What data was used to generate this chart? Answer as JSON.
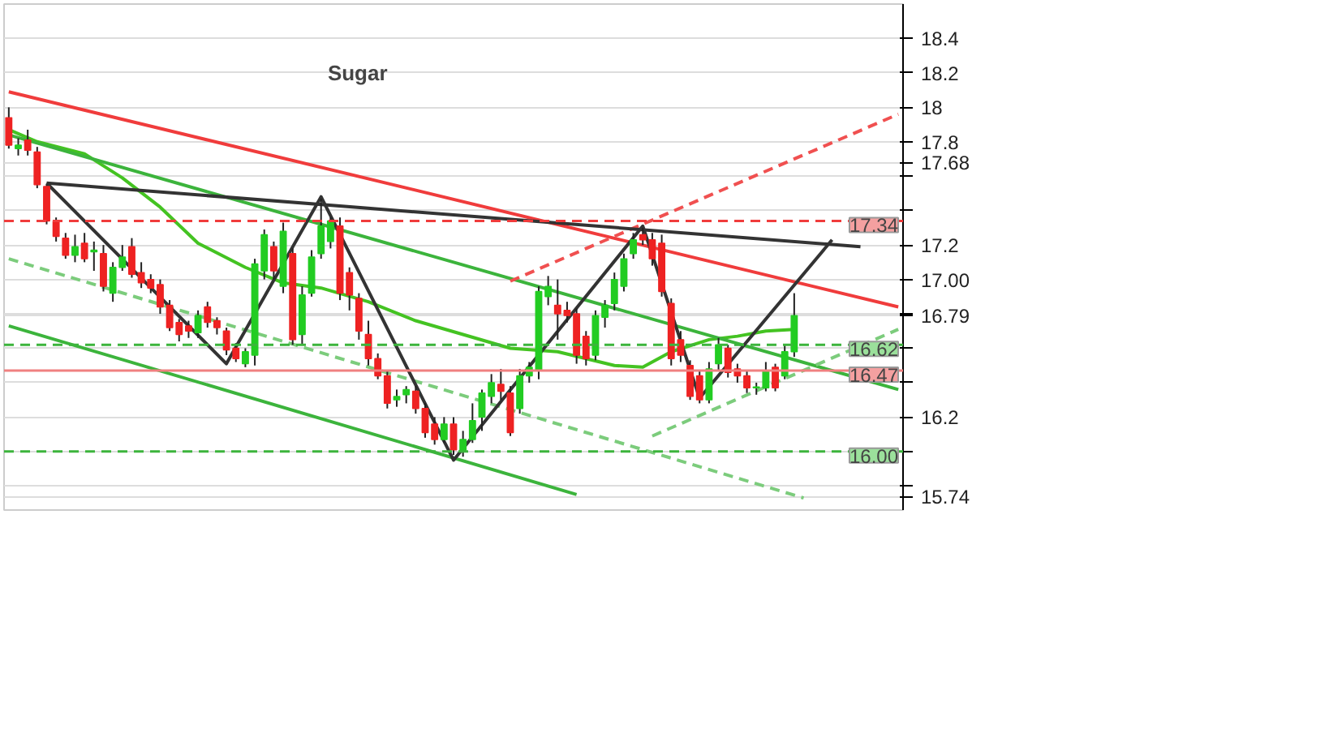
{
  "chart_data": {
    "type": "candlestick",
    "title": "Sugar",
    "categories": [
      null,
      null,
      null,
      null,
      null,
      null,
      null,
      null,
      null,
      null,
      null,
      null,
      null,
      null,
      null,
      null,
      null,
      null,
      null,
      null,
      null,
      null,
      null,
      null,
      null,
      null,
      null,
      null,
      null,
      null,
      null,
      null,
      null,
      null,
      null,
      null,
      null,
      null,
      null,
      null,
      null,
      null,
      null,
      null,
      null,
      null,
      null,
      null,
      null,
      null,
      null,
      null,
      null,
      null,
      null,
      null,
      null,
      null,
      null,
      null,
      null,
      null,
      null,
      null,
      null,
      null,
      null,
      null,
      null,
      null,
      null,
      null,
      null,
      null,
      null,
      null,
      null,
      null,
      null,
      null,
      null,
      null,
      null,
      null,
      null,
      null,
      null,
      null,
      null,
      null,
      null,
      null,
      null,
      null,
      null
    ],
    "ohlc": [
      [
        17.94,
        18.0,
        17.76,
        17.78
      ],
      [
        17.76,
        17.82,
        17.72,
        17.78
      ],
      [
        17.81,
        17.87,
        17.72,
        17.75
      ],
      [
        17.74,
        17.77,
        17.53,
        17.55
      ],
      [
        17.54,
        17.55,
        17.32,
        17.34
      ],
      [
        17.34,
        17.36,
        17.22,
        17.25
      ],
      [
        17.24,
        17.27,
        17.12,
        17.14
      ],
      [
        17.14,
        17.26,
        17.1,
        17.19
      ],
      [
        17.21,
        17.27,
        17.1,
        17.12
      ],
      [
        17.16,
        17.22,
        17.05,
        17.17
      ],
      [
        17.15,
        17.2,
        16.93,
        16.96
      ],
      [
        16.92,
        17.1,
        16.87,
        17.07
      ],
      [
        17.07,
        17.2,
        17.05,
        17.13
      ],
      [
        17.19,
        17.24,
        17.01,
        17.03
      ],
      [
        17.04,
        17.1,
        16.95,
        16.98
      ],
      [
        17.0,
        17.03,
        16.92,
        16.95
      ],
      [
        16.97,
        17.0,
        16.8,
        16.84
      ],
      [
        16.85,
        16.88,
        16.7,
        16.72
      ],
      [
        16.75,
        16.77,
        16.64,
        16.68
      ],
      [
        16.73,
        16.76,
        16.66,
        16.7
      ],
      [
        16.69,
        16.82,
        16.66,
        16.79
      ],
      [
        16.84,
        16.87,
        16.72,
        16.75
      ],
      [
        16.76,
        16.78,
        16.68,
        16.72
      ],
      [
        16.7,
        16.72,
        16.56,
        16.59
      ],
      [
        16.6,
        16.63,
        16.52,
        16.54
      ],
      [
        16.51,
        16.6,
        16.49,
        16.58
      ],
      [
        16.56,
        17.12,
        16.5,
        17.09
      ],
      [
        17.05,
        17.29,
        17.0,
        17.26
      ],
      [
        17.19,
        17.22,
        17.0,
        17.05
      ],
      [
        16.96,
        17.33,
        16.92,
        17.28
      ],
      [
        17.15,
        17.18,
        16.62,
        16.65
      ],
      [
        16.68,
        16.96,
        16.62,
        16.91
      ],
      [
        16.92,
        17.17,
        16.9,
        17.13
      ],
      [
        17.15,
        17.47,
        17.12,
        17.31
      ],
      [
        17.22,
        17.36,
        17.18,
        17.34
      ],
      [
        17.31,
        17.36,
        16.88,
        16.92
      ],
      [
        17.04,
        17.07,
        16.82,
        16.91
      ],
      [
        16.89,
        16.92,
        16.65,
        16.7
      ],
      [
        16.68,
        16.76,
        16.5,
        16.54
      ],
      [
        16.54,
        16.57,
        16.42,
        16.44
      ],
      [
        16.44,
        16.47,
        16.25,
        16.28
      ],
      [
        16.3,
        16.36,
        16.26,
        16.32
      ],
      [
        16.33,
        16.38,
        16.28,
        16.36
      ],
      [
        16.35,
        16.38,
        16.22,
        16.25
      ],
      [
        16.25,
        16.28,
        16.08,
        16.11
      ],
      [
        16.16,
        16.2,
        16.04,
        16.07
      ],
      [
        16.07,
        16.2,
        16.05,
        16.16
      ],
      [
        16.16,
        16.2,
        15.98,
        16.01
      ],
      [
        16.0,
        16.12,
        15.97,
        16.07
      ],
      [
        16.07,
        16.28,
        16.05,
        16.18
      ],
      [
        16.2,
        16.36,
        16.12,
        16.34
      ],
      [
        16.32,
        16.45,
        16.28,
        16.4
      ],
      [
        16.39,
        16.48,
        16.3,
        16.35
      ],
      [
        16.34,
        16.38,
        16.09,
        16.11
      ],
      [
        16.25,
        16.48,
        16.22,
        16.44
      ],
      [
        16.44,
        16.52,
        16.4,
        16.49
      ],
      [
        16.47,
        16.96,
        16.42,
        16.93
      ],
      [
        16.9,
        17.02,
        16.85,
        16.96
      ],
      [
        16.85,
        17.0,
        16.65,
        16.8
      ],
      [
        16.82,
        16.87,
        16.75,
        16.79
      ],
      [
        16.8,
        16.83,
        16.51,
        16.56
      ],
      [
        16.67,
        16.7,
        16.5,
        16.54
      ],
      [
        16.56,
        16.82,
        16.53,
        16.79
      ],
      [
        16.78,
        16.88,
        16.72,
        16.85
      ],
      [
        16.86,
        17.04,
        16.82,
        17.0
      ],
      [
        16.96,
        17.15,
        16.93,
        17.12
      ],
      [
        17.15,
        17.27,
        17.12,
        17.23
      ],
      [
        17.26,
        17.3,
        17.2,
        17.23
      ],
      [
        17.23,
        17.27,
        17.08,
        17.12
      ],
      [
        17.21,
        17.26,
        16.9,
        16.93
      ],
      [
        16.86,
        16.89,
        16.5,
        16.54
      ],
      [
        16.65,
        16.7,
        16.52,
        16.56
      ],
      [
        16.5,
        16.53,
        16.3,
        16.32
      ],
      [
        16.44,
        16.47,
        16.28,
        16.3
      ],
      [
        16.3,
        16.52,
        16.28,
        16.48
      ],
      [
        16.51,
        16.66,
        16.47,
        16.62
      ],
      [
        16.6,
        16.62,
        16.43,
        16.46
      ],
      [
        16.48,
        16.51,
        16.4,
        16.44
      ],
      [
        16.44,
        16.47,
        16.34,
        16.37
      ],
      [
        16.37,
        16.4,
        16.33,
        16.37
      ],
      [
        16.37,
        16.52,
        16.35,
        16.47
      ],
      [
        16.49,
        16.51,
        16.35,
        16.37
      ],
      [
        16.44,
        16.62,
        16.42,
        16.58
      ],
      [
        16.58,
        16.92,
        16.55,
        16.79
      ],
      null,
      null,
      null,
      null,
      null,
      null,
      null,
      null,
      null,
      null,
      null
    ],
    "series": [
      {
        "type": "line",
        "color": "#44c322",
        "line_style": "solid",
        "values": [
          17.87,
          null,
          null,
          17.8,
          null,
          null,
          null,
          null,
          17.73,
          null,
          null,
          null,
          17.59,
          null,
          null,
          null,
          17.42,
          null,
          null,
          null,
          17.21,
          null,
          null,
          null,
          null,
          17.07,
          null,
          null,
          null,
          16.98,
          null,
          null,
          null,
          16.95,
          null,
          null,
          null,
          null,
          16.87,
          null,
          null,
          null,
          null,
          16.76,
          null,
          null,
          null,
          null,
          16.68,
          null,
          null,
          null,
          null,
          16.6,
          null,
          null,
          null,
          null,
          16.58,
          null,
          null,
          null,
          null,
          null,
          16.5,
          null,
          null,
          16.49,
          null,
          null,
          16.58,
          null,
          null,
          null,
          16.65,
          null,
          null,
          16.67,
          null,
          null,
          16.7,
          null,
          null,
          16.71,
          null,
          null,
          null,
          null,
          null,
          null,
          null,
          null,
          null,
          null,
          null
        ]
      },
      {
        "type": "line",
        "color": "#f03c3c",
        "line_style": "solid",
        "values": [
          18.09,
          null,
          null,
          null,
          null,
          null,
          null,
          null,
          null,
          null,
          null,
          null,
          null,
          null,
          null,
          null,
          null,
          null,
          null,
          null,
          null,
          null,
          null,
          null,
          null,
          null,
          null,
          null,
          null,
          null,
          null,
          null,
          null,
          null,
          null,
          null,
          null,
          null,
          null,
          null,
          null,
          null,
          null,
          null,
          null,
          null,
          null,
          null,
          null,
          null,
          null,
          null,
          null,
          null,
          null,
          null,
          null,
          null,
          null,
          null,
          null,
          null,
          null,
          null,
          null,
          null,
          null,
          null,
          null,
          null,
          null,
          null,
          null,
          null,
          null,
          null,
          null,
          null,
          null,
          null,
          null,
          null,
          null,
          null,
          null,
          null,
          null,
          null,
          null,
          null,
          null,
          null,
          null,
          null,
          16.84
        ]
      },
      {
        "type": "line",
        "color": "#3cb43c",
        "line_style": "solid",
        "values": [
          17.84,
          null,
          null,
          null,
          null,
          null,
          null,
          null,
          null,
          null,
          null,
          null,
          null,
          null,
          null,
          null,
          null,
          null,
          null,
          null,
          null,
          null,
          null,
          null,
          null,
          null,
          null,
          null,
          null,
          null,
          null,
          null,
          null,
          null,
          null,
          null,
          null,
          null,
          null,
          null,
          null,
          null,
          null,
          null,
          null,
          null,
          null,
          null,
          null,
          null,
          null,
          null,
          null,
          null,
          null,
          null,
          null,
          null,
          null,
          null,
          null,
          null,
          null,
          null,
          null,
          null,
          null,
          null,
          null,
          null,
          null,
          null,
          null,
          null,
          null,
          null,
          null,
          null,
          null,
          null,
          null,
          null,
          null,
          null,
          null,
          null,
          null,
          null,
          null,
          null,
          null,
          null,
          null,
          null,
          16.36
        ]
      },
      {
        "type": "line",
        "color": "#3cb43c",
        "line_style": "solid",
        "values": [
          16.73,
          null,
          null,
          null,
          null,
          null,
          null,
          null,
          null,
          null,
          null,
          null,
          null,
          null,
          null,
          null,
          null,
          null,
          null,
          null,
          null,
          null,
          null,
          null,
          null,
          null,
          null,
          null,
          null,
          null,
          null,
          null,
          null,
          null,
          null,
          null,
          null,
          null,
          null,
          null,
          null,
          null,
          null,
          null,
          null,
          null,
          null,
          null,
          null,
          null,
          null,
          null,
          null,
          null,
          null,
          null,
          null,
          null,
          null,
          null,
          15.75,
          null,
          null,
          null,
          null,
          null,
          null,
          null,
          null,
          null,
          null,
          null,
          null,
          null,
          null,
          null,
          null,
          null,
          null,
          null,
          null,
          null,
          null,
          null,
          null,
          null,
          null,
          null,
          null,
          null,
          null,
          null,
          null,
          null,
          null
        ]
      },
      {
        "type": "line",
        "color": "#7ccc7c",
        "line_style": "dashed",
        "values": [
          17.12,
          null,
          null,
          null,
          null,
          null,
          null,
          null,
          null,
          null,
          null,
          null,
          null,
          null,
          null,
          null,
          null,
          null,
          null,
          null,
          null,
          null,
          null,
          null,
          null,
          null,
          null,
          null,
          null,
          null,
          null,
          null,
          null,
          null,
          null,
          null,
          null,
          null,
          null,
          null,
          null,
          null,
          null,
          null,
          null,
          null,
          null,
          null,
          null,
          null,
          null,
          null,
          null,
          null,
          null,
          null,
          null,
          null,
          null,
          null,
          null,
          null,
          null,
          null,
          null,
          null,
          null,
          null,
          null,
          null,
          null,
          null,
          null,
          null,
          null,
          null,
          null,
          null,
          null,
          null,
          null,
          null,
          null,
          null,
          15.73,
          null,
          null,
          null,
          null,
          null,
          null,
          null,
          null,
          null,
          null
        ]
      },
      {
        "type": "line",
        "color": "#7ccc7c",
        "line_style": "dashed",
        "values": [
          null,
          null,
          null,
          null,
          null,
          null,
          null,
          null,
          null,
          null,
          null,
          null,
          null,
          null,
          null,
          null,
          null,
          null,
          null,
          null,
          null,
          null,
          null,
          null,
          null,
          null,
          null,
          null,
          null,
          null,
          null,
          null,
          null,
          null,
          null,
          null,
          null,
          null,
          null,
          null,
          null,
          null,
          null,
          null,
          null,
          null,
          null,
          null,
          null,
          null,
          null,
          null,
          null,
          null,
          null,
          null,
          null,
          null,
          null,
          null,
          null,
          null,
          null,
          null,
          null,
          null,
          null,
          null,
          16.09,
          null,
          null,
          null,
          null,
          null,
          null,
          null,
          null,
          null,
          null,
          null,
          null,
          null,
          null,
          null,
          null,
          null,
          null,
          null,
          null,
          null,
          null,
          null,
          null,
          null,
          16.71
        ]
      },
      {
        "type": "line",
        "color": "#f05050",
        "line_style": "dashed",
        "values": [
          null,
          null,
          null,
          null,
          null,
          null,
          null,
          null,
          null,
          null,
          null,
          null,
          null,
          null,
          null,
          null,
          null,
          null,
          null,
          null,
          null,
          null,
          null,
          null,
          null,
          null,
          null,
          null,
          null,
          null,
          null,
          null,
          null,
          null,
          null,
          null,
          null,
          null,
          null,
          null,
          null,
          null,
          null,
          null,
          null,
          null,
          null,
          null,
          null,
          null,
          null,
          null,
          null,
          16.99,
          null,
          null,
          null,
          null,
          null,
          null,
          null,
          null,
          null,
          null,
          null,
          null,
          null,
          null,
          null,
          null,
          null,
          null,
          null,
          null,
          null,
          null,
          null,
          null,
          null,
          null,
          null,
          null,
          null,
          null,
          null,
          null,
          null,
          null,
          null,
          null,
          null,
          null,
          null,
          null,
          17.96
        ]
      },
      {
        "type": "line",
        "color": "#333333",
        "line_style": "solid",
        "values": [
          null,
          null,
          null,
          null,
          17.56,
          null,
          null,
          null,
          null,
          null,
          null,
          null,
          null,
          null,
          null,
          null,
          null,
          null,
          null,
          null,
          null,
          null,
          null,
          null,
          null,
          null,
          null,
          null,
          null,
          null,
          null,
          null,
          null,
          null,
          null,
          null,
          null,
          null,
          null,
          null,
          null,
          null,
          null,
          null,
          null,
          null,
          null,
          null,
          null,
          null,
          null,
          null,
          null,
          null,
          null,
          null,
          null,
          null,
          null,
          null,
          null,
          null,
          null,
          null,
          null,
          null,
          null,
          null,
          null,
          null,
          null,
          null,
          null,
          null,
          null,
          null,
          null,
          null,
          null,
          null,
          null,
          null,
          null,
          null,
          null,
          null,
          null,
          null,
          null,
          null,
          17.19,
          null,
          null,
          null,
          null
        ]
      },
      {
        "type": "line",
        "color": "#333333",
        "line_style": "solid",
        "values": [
          null,
          null,
          null,
          null,
          17.56,
          null,
          null,
          null,
          null,
          null,
          null,
          null,
          null,
          null,
          null,
          null,
          null,
          null,
          null,
          null,
          null,
          null,
          null,
          16.51,
          null,
          null,
          null,
          null,
          null,
          null,
          null,
          null,
          null,
          17.48,
          null,
          null,
          null,
          null,
          null,
          null,
          null,
          null,
          null,
          null,
          null,
          null,
          null,
          15.95,
          null,
          null,
          null,
          null,
          null,
          null,
          null,
          null,
          null,
          null,
          null,
          null,
          null,
          null,
          null,
          null,
          null,
          null,
          null,
          17.31,
          null,
          null,
          null,
          null,
          null,
          16.31,
          null,
          null,
          null,
          null,
          null,
          null,
          null,
          null,
          null,
          null,
          null,
          null,
          null,
          17.23,
          null,
          null,
          null,
          null,
          null,
          null,
          null
        ]
      }
    ],
    "ylim": [
      15.66,
      18.6
    ],
    "yticks": [
      18.4,
      18.2,
      {
        "value": 18,
        "label": "18"
      },
      17.8,
      {
        "value": 17.68,
        "label": "17.68"
      },
      {
        "value": 17.6,
        "label": null
      },
      {
        "value": 17.4,
        "label": null
      },
      17.2,
      {
        "value": 17.0,
        "label": "17.00"
      },
      {
        "value": 16.8,
        "label": null
      },
      {
        "value": 16.79,
        "label": "16.79"
      },
      {
        "value": 16.6,
        "label": null
      },
      {
        "value": 16.4,
        "label": null
      },
      16.2,
      {
        "value": 16.0,
        "label": null
      },
      {
        "value": 15.8,
        "label": null
      },
      {
        "value": 15.74,
        "label": "15.74"
      }
    ],
    "grid": "y",
    "tick_labels": "y",
    "ref_lines": [
      {
        "axis": "y",
        "value": 17.34,
        "label": "17.34",
        "color": "#f03c3c",
        "line_style": "dashed"
      },
      {
        "axis": "y",
        "value": 16.62,
        "label": "16.62",
        "color": "#3cb43c",
        "line_style": "dashed"
      },
      {
        "axis": "y",
        "value": 16.0,
        "label": "16.00",
        "color": "#3cb43c",
        "line_style": "dashed"
      },
      {
        "axis": "y",
        "value": 16.47,
        "label": "16.47",
        "color": "#f08080",
        "line_style": "solid"
      }
    ]
  }
}
